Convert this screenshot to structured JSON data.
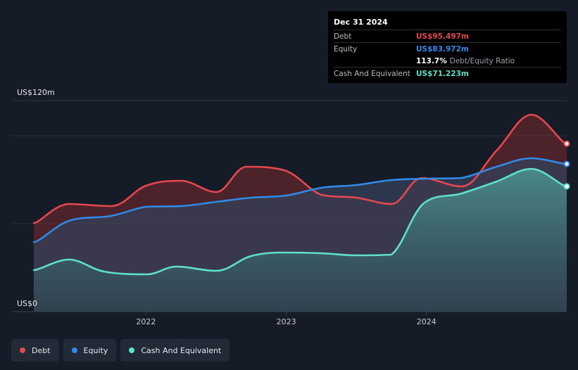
{
  "chart_data": {
    "type": "area",
    "y_axis_labels": [
      "US$120m",
      "US$0"
    ],
    "ylim": [
      0,
      120
    ],
    "xlim": [
      2021.2,
      2025.0
    ],
    "x_ticks": [
      {
        "value": 2022,
        "label": "2022"
      },
      {
        "value": 2023,
        "label": "2023"
      },
      {
        "value": 2024,
        "label": "2024"
      }
    ],
    "grid": true,
    "legend_position": "bottom-left",
    "series": [
      {
        "name": "Debt",
        "color": "#e5484d",
        "points": [
          [
            2021.2,
            50.4
          ],
          [
            2021.45,
            61.2
          ],
          [
            2021.75,
            60.0
          ],
          [
            2022.0,
            71.6
          ],
          [
            2022.25,
            74.4
          ],
          [
            2022.5,
            68.0
          ],
          [
            2022.72,
            82.4
          ],
          [
            2023.0,
            80.0
          ],
          [
            2023.25,
            66.4
          ],
          [
            2023.5,
            64.8
          ],
          [
            2023.75,
            61.2
          ],
          [
            2023.97,
            76.0
          ],
          [
            2024.25,
            71.2
          ],
          [
            2024.5,
            91.6
          ],
          [
            2024.75,
            112.0
          ],
          [
            2025.0,
            95.497
          ]
        ]
      },
      {
        "name": "Equity",
        "color": "#2f8ae8",
        "points": [
          [
            2021.2,
            39.6
          ],
          [
            2021.45,
            51.6
          ],
          [
            2021.75,
            54.4
          ],
          [
            2022.0,
            59.6
          ],
          [
            2022.25,
            60.0
          ],
          [
            2022.5,
            62.4
          ],
          [
            2022.75,
            64.8
          ],
          [
            2023.0,
            66.0
          ],
          [
            2023.25,
            70.4
          ],
          [
            2023.5,
            72.0
          ],
          [
            2023.75,
            74.8
          ],
          [
            2024.0,
            75.6
          ],
          [
            2024.25,
            76.0
          ],
          [
            2024.5,
            82.4
          ],
          [
            2024.75,
            87.2
          ],
          [
            2025.0,
            83.972
          ]
        ]
      },
      {
        "name": "Cash And Equivalent",
        "color": "#5fe0c8",
        "points": [
          [
            2021.2,
            23.6
          ],
          [
            2021.45,
            29.6
          ],
          [
            2021.7,
            22.8
          ],
          [
            2022.0,
            21.2
          ],
          [
            2022.22,
            25.6
          ],
          [
            2022.5,
            23.2
          ],
          [
            2022.75,
            31.6
          ],
          [
            2023.0,
            33.6
          ],
          [
            2023.25,
            33.2
          ],
          [
            2023.5,
            32.0
          ],
          [
            2023.75,
            32.4
          ],
          [
            2023.98,
            61.6
          ],
          [
            2024.25,
            67.2
          ],
          [
            2024.5,
            74.0
          ],
          [
            2024.75,
            81.2
          ],
          [
            2025.0,
            71.223
          ]
        ]
      }
    ]
  },
  "tooltip": {
    "date": "Dec 31 2024",
    "rows": [
      {
        "label": "Debt",
        "value": "US$95.497m",
        "color": "#e5484d"
      },
      {
        "label": "Equity",
        "value": "US$83.972m",
        "color": "#2f8ae8"
      },
      {
        "label": "",
        "value": "113.7%",
        "note": "Debt/Equity Ratio",
        "color": "#ffffff"
      },
      {
        "label": "Cash And Equivalent",
        "value": "US$71.223m",
        "color": "#5fe0c8"
      }
    ]
  },
  "legend": [
    {
      "label": "Debt",
      "color": "#e5484d"
    },
    {
      "label": "Equity",
      "color": "#2f8ae8"
    },
    {
      "label": "Cash And Equivalent",
      "color": "#5fe0c8"
    }
  ]
}
